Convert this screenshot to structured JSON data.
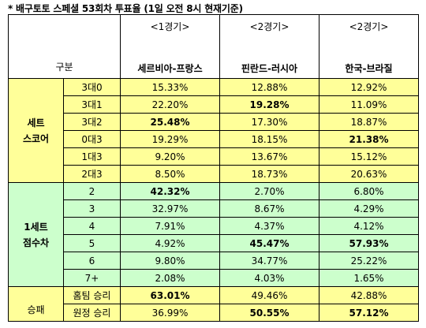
{
  "title": "* 배구토토 스페셜 53회차 투표율 (1일 오전 8시 현재기준)",
  "header": {
    "gubun": "구분",
    "matches": [
      {
        "game": "<1경기>",
        "teams": "세르비아-프랑스"
      },
      {
        "game": "<2경기>",
        "teams": "핀란드-러시아"
      },
      {
        "game": "<2경기>",
        "teams": "한국-브라질"
      }
    ]
  },
  "sections": [
    {
      "name_line1": "세트",
      "name_line2": "스코어",
      "color": "#ffff99",
      "rows": [
        {
          "label": "3대0",
          "values": [
            "15.33%",
            "12.88%",
            "12.92%"
          ],
          "bold": [
            false,
            false,
            false
          ]
        },
        {
          "label": "3대1",
          "values": [
            "22.20%",
            "19.28%",
            "11.09%"
          ],
          "bold": [
            false,
            true,
            false
          ]
        },
        {
          "label": "3대2",
          "values": [
            "25.48%",
            "17.30%",
            "18.87%"
          ],
          "bold": [
            true,
            false,
            false
          ]
        },
        {
          "label": "0대3",
          "values": [
            "19.29%",
            "18.15%",
            "21.38%"
          ],
          "bold": [
            false,
            false,
            true
          ]
        },
        {
          "label": "1대3",
          "values": [
            "9.20%",
            "13.67%",
            "15.12%"
          ],
          "bold": [
            false,
            false,
            false
          ]
        },
        {
          "label": "2대3",
          "values": [
            "8.50%",
            "18.73%",
            "20.63%"
          ],
          "bold": [
            false,
            false,
            false
          ]
        }
      ]
    },
    {
      "name_line1": "1세트",
      "name_line2": "점수차",
      "color": "#ccffcc",
      "rows": [
        {
          "label": "2",
          "values": [
            "42.32%",
            "2.70%",
            "6.80%"
          ],
          "bold": [
            true,
            false,
            false
          ]
        },
        {
          "label": "3",
          "values": [
            "32.97%",
            "8.67%",
            "4.29%"
          ],
          "bold": [
            false,
            false,
            false
          ]
        },
        {
          "label": "4",
          "values": [
            "7.91%",
            "4.37%",
            "4.12%"
          ],
          "bold": [
            false,
            false,
            false
          ]
        },
        {
          "label": "5",
          "values": [
            "4.92%",
            "45.47%",
            "57.93%"
          ],
          "bold": [
            false,
            true,
            true
          ]
        },
        {
          "label": "6",
          "values": [
            "9.80%",
            "34.77%",
            "25.22%"
          ],
          "bold": [
            false,
            false,
            false
          ]
        },
        {
          "label": "7+",
          "values": [
            "2.08%",
            "4.03%",
            "1.65%"
          ],
          "bold": [
            false,
            false,
            false
          ]
        }
      ]
    },
    {
      "name_line1": "승패",
      "name_line2": "",
      "color": "#ffff99",
      "rows": [
        {
          "label": "홈팀 승리",
          "values": [
            "63.01%",
            "49.46%",
            "42.88%"
          ],
          "bold": [
            true,
            false,
            false
          ]
        },
        {
          "label": "원정 승리",
          "values": [
            "36.99%",
            "50.55%",
            "57.12%"
          ],
          "bold": [
            false,
            true,
            true
          ]
        }
      ]
    }
  ]
}
